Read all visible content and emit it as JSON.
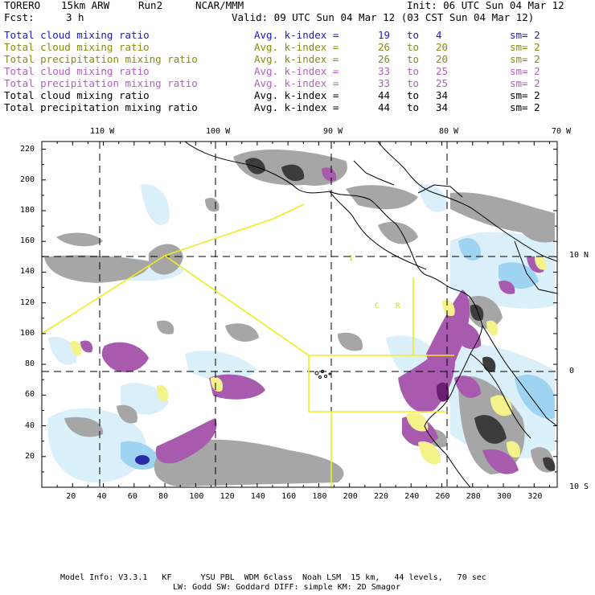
{
  "header": {
    "model": "TORERO",
    "resolution": "15km ARW",
    "run": "Run2",
    "org": "NCAR/MMM",
    "init": "Init: 06 UTC Sun 04 Mar 12",
    "fcst_label": "Fcst:",
    "fcst_value": "3 h",
    "valid": "Valid: 09 UTC Sun 04 Mar 12 (03 CST Sun 04 Mar 12)"
  },
  "legend": [
    {
      "field": "Total cloud mixing ratio",
      "kindex": "Avg. k-index =",
      "from": "19",
      "to_word": "to",
      "to": "4",
      "sm": "sm= 2",
      "color": "#1a1acc"
    },
    {
      "field": "Total cloud mixing ratio",
      "kindex": "Avg. k-index =",
      "from": "26",
      "to_word": "to",
      "to": "20",
      "sm": "sm= 2",
      "color": "#8a8a12"
    },
    {
      "field": "Total precipitation mixing ratio",
      "kindex": "Avg. k-index =",
      "from": "26",
      "to_word": "to",
      "to": "20",
      "sm": "sm= 2",
      "color": "#8a8a12"
    },
    {
      "field": "Total cloud mixing ratio",
      "kindex": "Avg. k-index =",
      "from": "33",
      "to_word": "to",
      "to": "25",
      "sm": "sm= 2",
      "color": "#b060c0"
    },
    {
      "field": "Total precipitation mixing ratio",
      "kindex": "Avg. k-index =",
      "from": "33",
      "to_word": "to",
      "to": "25",
      "sm": "sm= 2",
      "color": "#b060c0"
    },
    {
      "field": "Total cloud mixing ratio",
      "kindex": "Avg. k-index =",
      "from": "44",
      "to_word": "to",
      "to": "34",
      "sm": "sm= 2",
      "color": "#000000"
    },
    {
      "field": "Total precipitation mixing ratio",
      "kindex": "Avg. k-index =",
      "from": "44",
      "to_word": "to",
      "to": "34",
      "sm": "sm= 2",
      "color": "#000000"
    }
  ],
  "axes": {
    "top_lon_labels": [
      "110 W",
      "100 W",
      "90 W",
      "80 W",
      "70 W"
    ],
    "right_lat_labels": [
      "10 N",
      "0",
      "10 S"
    ],
    "x_ticks": [
      "20",
      "40",
      "60",
      "80",
      "100",
      "120",
      "140",
      "160",
      "180",
      "200",
      "220",
      "240",
      "260",
      "280",
      "300",
      "320"
    ],
    "y_ticks": [
      "220",
      "200",
      "180",
      "160",
      "140",
      "120",
      "100",
      "80",
      "60",
      "40",
      "20"
    ]
  },
  "map_labels": {
    "country_a": "C",
    "country_b": "R",
    "mark": "I"
  },
  "footer": {
    "line1": "Model Info: V3.3.1   KF      YSU PBL  WDM 6class  Noah LSM  15 km,   44 levels,   70 sec",
    "line2": "LW: Godd SW: Goddard DIFF: simple KM: 2D Smagor"
  }
}
